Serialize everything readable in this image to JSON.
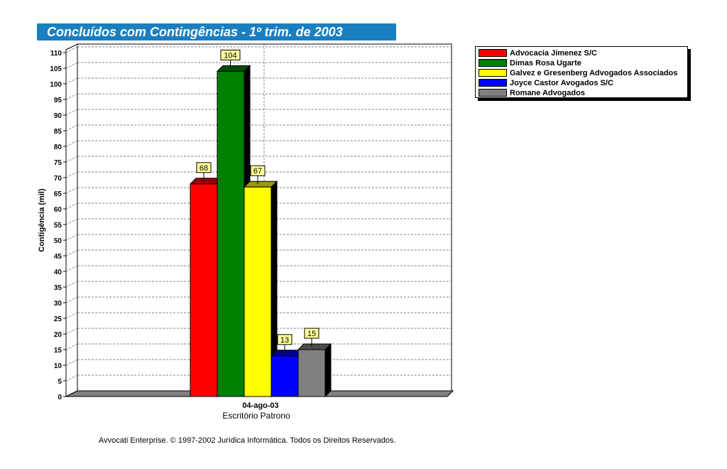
{
  "chart_data": {
    "type": "bar",
    "title": "Concluídos com Contingências - 1º trim. de 2003",
    "xlabel": "Escritório Patrono",
    "ylabel": "Contigência (mil)",
    "categories": [
      "04-ago-03"
    ],
    "ylim": [
      0,
      110
    ],
    "ytick_step": 5,
    "grid": true,
    "legend_position": "top-right",
    "series": [
      {
        "name": "Advocacia Jimenez S/C",
        "values": [
          68
        ],
        "color": "#ff0000",
        "label": "68"
      },
      {
        "name": "Dimas Rosa Ugarte",
        "values": [
          104
        ],
        "color": "#008000",
        "label": "104"
      },
      {
        "name": "Galvez e Gresenberg Advogados Associados",
        "values": [
          67
        ],
        "color": "#ffff00",
        "label": "67"
      },
      {
        "name": "Joyce Castor Avogados S/C",
        "values": [
          13
        ],
        "color": "#0000ff",
        "label": "13"
      },
      {
        "name": "Romane Advogados",
        "values": [
          15
        ],
        "color": "#808080",
        "label": "15"
      }
    ]
  },
  "footer": "Avvocati Enterprise. © 1997-2002 Jurídica Informática. Todos os Direitos Reservados."
}
